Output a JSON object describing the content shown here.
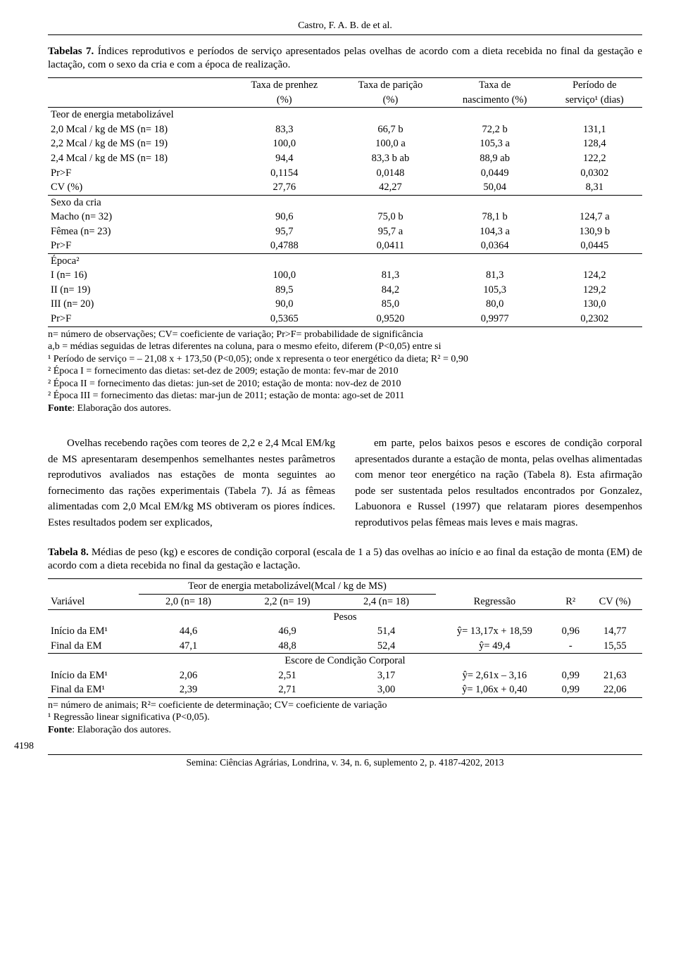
{
  "header_author": "Castro, F. A. B. de et al.",
  "table7": {
    "label": "Tabelas 7.",
    "caption": "Índices reprodutivos e períodos de serviço apresentados pelas ovelhas de acordo com a dieta recebida no final da gestação e lactação, com o sexo da cria e com a época de realização.",
    "col_headers": {
      "c1a": "Taxa de prenhez",
      "c1b": "(%)",
      "c2a": "Taxa de parição",
      "c2b": "(%)",
      "c3a": "Taxa de",
      "c3b": "nascimento (%)",
      "c4a": "Período de",
      "c4b": "serviço¹ (dias)"
    },
    "sections": {
      "energia_title": "Teor de energia metabolizável",
      "sexo_title": "Sexo da cria",
      "epoca_title": "Época²"
    },
    "rows": [
      {
        "label": "2,0 Mcal / kg de MS (n= 18)",
        "v": [
          "83,3",
          "66,7 b",
          "72,2 b",
          "131,1"
        ]
      },
      {
        "label": "2,2 Mcal / kg de MS (n= 19)",
        "v": [
          "100,0",
          "100,0 a",
          "105,3 a",
          "128,4"
        ]
      },
      {
        "label": "2,4 Mcal / kg de MS (n= 18)",
        "v": [
          "94,4",
          "83,3 b ab",
          "88,9 ab",
          "122,2"
        ]
      },
      {
        "label": "Pr>F",
        "v": [
          "0,1154",
          "0,0148",
          "0,0449",
          "0,0302"
        ]
      },
      {
        "label": "CV (%)",
        "v": [
          "27,76",
          "42,27",
          "50,04",
          "8,31"
        ]
      },
      {
        "label": "Macho (n= 32)",
        "v": [
          "90,6",
          "75,0 b",
          "78,1 b",
          "124,7 a"
        ]
      },
      {
        "label": "Fêmea (n= 23)",
        "v": [
          "95,7",
          "95,7 a",
          "104,3 a",
          "130,9 b"
        ]
      },
      {
        "label": "Pr>F",
        "v": [
          "0,4788",
          "0,0411",
          "0,0364",
          "0,0445"
        ]
      },
      {
        "label": "I (n= 16)",
        "v": [
          "100,0",
          "81,3",
          "81,3",
          "124,2"
        ]
      },
      {
        "label": "II (n= 19)",
        "v": [
          "89,5",
          "84,2",
          "105,3",
          "129,2"
        ]
      },
      {
        "label": "III (n= 20)",
        "v": [
          "90,0",
          "85,0",
          "80,0",
          "130,0"
        ]
      },
      {
        "label": "Pr>F",
        "v": [
          "0,5365",
          "0,9520",
          "0,9977",
          "0,2302"
        ]
      }
    ],
    "footnotes": [
      "n= número de observações; CV= coeficiente de variação; Pr>F= probabilidade de significância",
      "a,b = médias seguidas de letras diferentes na coluna, para o mesmo efeito, diferem (P<0,05) entre si",
      "¹ Período de serviço = – 21,08 x + 173,50 (P<0,05); onde x representa o teor energético da dieta; R² = 0,90",
      "² Época I = fornecimento das dietas: set-dez de 2009; estação de monta: fev-mar de 2010",
      "² Época II = fornecimento das dietas: jun-set de 2010; estação de monta: nov-dez de 2010",
      "² Época III = fornecimento das dietas: mar-jun de 2011; estação de monta: ago-set de 2011"
    ],
    "source_label": "Fonte",
    "source_text": ": Elaboração dos autores."
  },
  "body": {
    "left": "Ovelhas recebendo rações com teores de 2,2 e 2,4 Mcal EM/kg de MS apresentaram desempenhos semelhantes nestes parâmetros reprodutivos avaliados nas estações de monta seguintes ao fornecimento das rações experimentais (Tabela 7). Já as fêmeas alimentadas com 2,0 Mcal EM/kg MS obtiveram os piores índices. Estes resultados podem ser explicados,",
    "right": "em parte, pelos baixos pesos e escores de condição corporal apresentados durante a estação de monta, pelas ovelhas alimentadas com menor teor energético na ração (Tabela 8). Esta afirmação pode ser sustentada pelos resultados encontrados por Gonzalez, Labuonora e Russel (1997) que relataram piores desempenhos reprodutivos pelas fêmeas mais leves e mais magras."
  },
  "table8": {
    "label": "Tabela 8.",
    "caption": "Médias de peso (kg) e escores de condição corporal (escala de 1 a 5) das ovelhas ao início e ao final da estação de monta (EM) de acordo com a dieta recebida no final da gestação e lactação.",
    "group_header": "Teor de energia metabolizável(Mcal / kg de MS)",
    "col_headers": [
      "Variável",
      "2,0 (n= 18)",
      "2,2 (n= 19)",
      "2,4 (n= 18)",
      "Regressão",
      "R²",
      "CV (%)"
    ],
    "section_pesos": "Pesos",
    "section_escore": "Escore de Condição Corporal",
    "rows_pesos": [
      {
        "label": "Início da EM¹",
        "v": [
          "44,6",
          "46,9",
          "51,4",
          "ŷ= 13,17x + 18,59",
          "0,96",
          "14,77"
        ]
      },
      {
        "label": "Final da EM",
        "v": [
          "47,1",
          "48,8",
          "52,4",
          "ŷ= 49,4",
          "-",
          "15,55"
        ]
      }
    ],
    "rows_escore": [
      {
        "label": "Início da EM¹",
        "v": [
          "2,06",
          "2,51",
          "3,17",
          "ŷ= 2,61x – 3,16",
          "0,99",
          "21,63"
        ]
      },
      {
        "label": "Final da EM¹",
        "v": [
          "2,39",
          "2,71",
          "3,00",
          "ŷ= 1,06x + 0,40",
          "0,99",
          "22,06"
        ]
      }
    ],
    "footnotes": [
      "n= número de animais; R²= coeficiente de determinação; CV= coeficiente de variação",
      "¹ Regressão linear significativa (P<0,05)."
    ],
    "source_label": "Fonte",
    "source_text": ": Elaboração dos autores."
  },
  "page_number": "4198",
  "footer": "Semina: Ciências Agrárias, Londrina, v. 34, n. 6, suplemento 2, p. 4187-4202, 2013"
}
